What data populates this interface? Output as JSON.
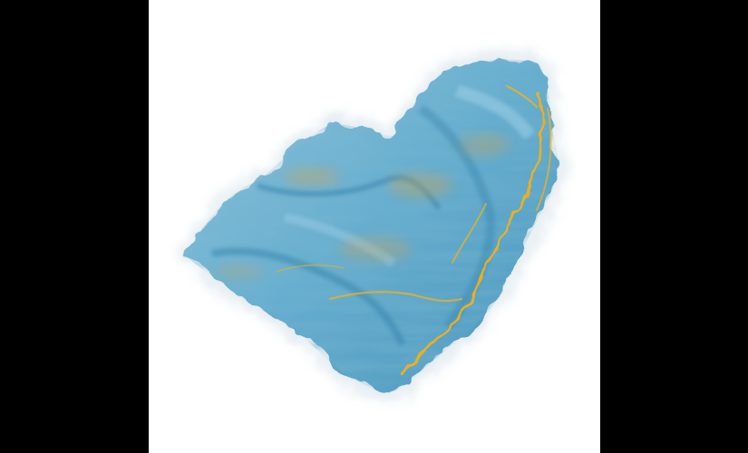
{
  "image": {
    "subject": "volume-rendering",
    "colors": {
      "letterbox": "#000000",
      "background": "#ffffff",
      "primary": "#5aa8cc",
      "primary_dark": "#2f7fa8",
      "primary_light": "#9ed0e6",
      "highlight": "#f2b01e",
      "highlight_dim": "#d9a24a"
    }
  }
}
